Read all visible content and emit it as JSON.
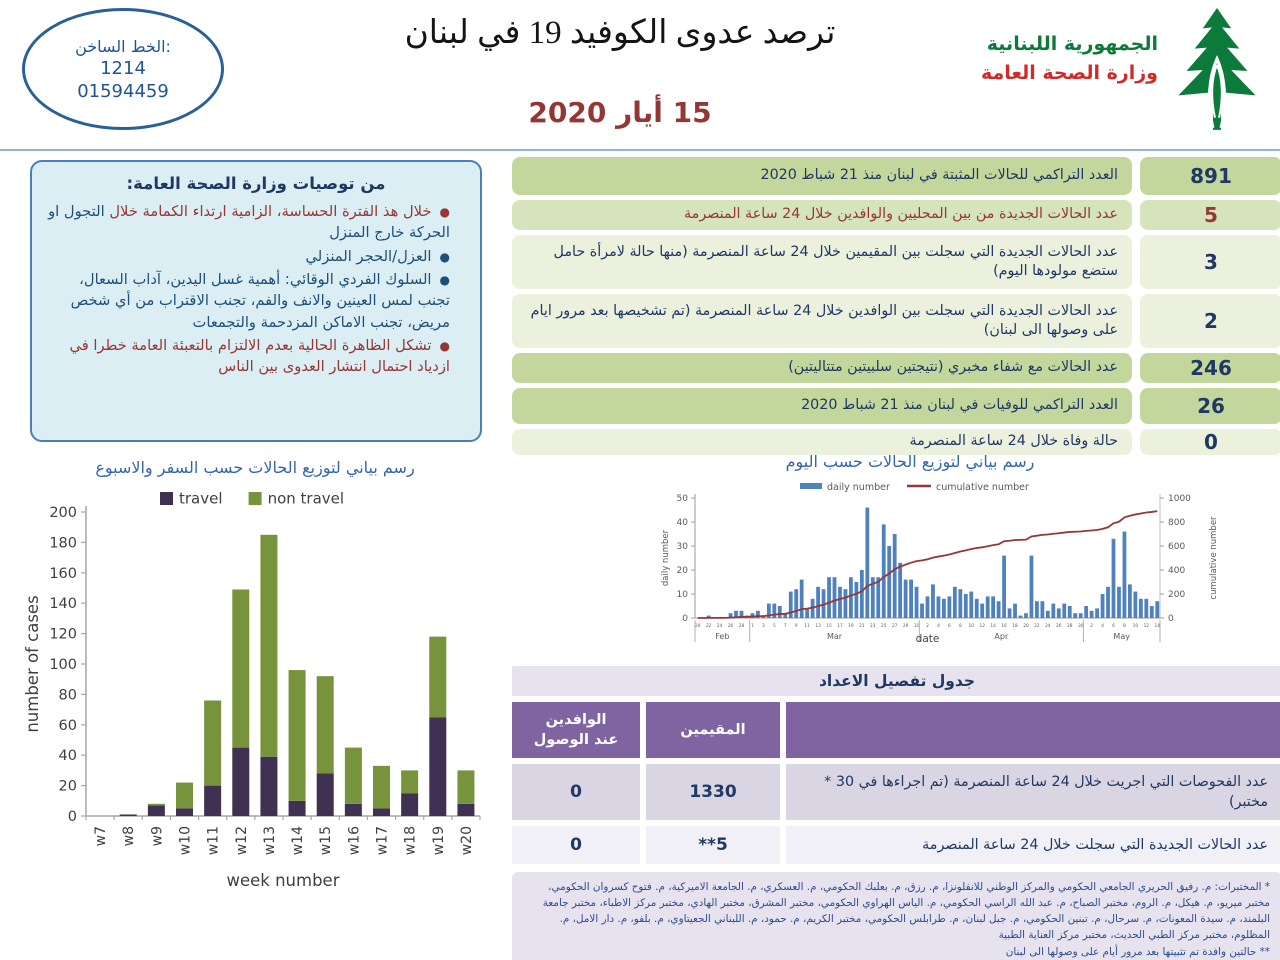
{
  "header": {
    "hotline": {
      "label": "الخط الساخن:",
      "number1": "1214",
      "number2": "01594459"
    },
    "title": "ترصد عدوى الكوفيد 19 في لبنان",
    "date": "15 أيار 2020",
    "ministry_line1": "الجمهورية اللبنانية",
    "ministry_line2": "وزارة الصحة العامة"
  },
  "recommendations": {
    "title": "من توصيات وزارة الصحة العامة:",
    "bullet1_red": "خلال هذ الفترة الحساسة، الزامية ارتداء الكمامة خلال",
    "bullet1_blue": "التجول او الحركة خارج المنزل",
    "bullet2": "العزل/الحجر المنزلي",
    "bullet3": "السلوك الفردي الوقائي: أهمية غسل اليدين، آداب السعال، تجنب لمس العينين والانف والفم، تجنب الاقتراب من أي شخص مريض، تجنب الاماكن المزدحمة والتجمعات",
    "bullet4": "تشكل الظاهرة الحالية بعدم الالتزام بالتعبئة العامة خطرا في ازدياد احتمال انتشار العدوى بين الناس"
  },
  "stats": {
    "rows": [
      {
        "value": "891",
        "label": "العدد التراكمي للحالات المثبتة في لبنان منذ 21 شباط 2020"
      },
      {
        "value": "5",
        "label": "عدد الحالات الجديدة من بين المحليين والوافدين خلال 24 ساعة المنصرمة"
      },
      {
        "value": "3",
        "label": "عدد الحالات الجديدة التي سجلت بين المقيمين خلال 24 ساعة المنصرمة (منها حالة لامرأة حامل ستضع مولودها اليوم)"
      },
      {
        "value": "2",
        "label": "عدد الحالات الجديدة التي سجلت بين الوافدين خلال 24 ساعة المنصرمة (تم تشخيصها بعد مرور ايام على وصولها الى لبنان)"
      },
      {
        "value": "246",
        "label": "عدد الحالات مع شفاء مخبري (نتيجتين سلبيتين متتاليتين)"
      },
      {
        "value": "26",
        "label": "العدد التراكمي للوفيات في لبنان منذ 21 شباط 2020"
      },
      {
        "value": "0",
        "label": "حالة وفاة خلال 24 ساعة المنصرمة"
      }
    ]
  },
  "chart_data": [
    {
      "type": "bar",
      "stacked": true,
      "title": "رسم بياني لتوزيع الحالات حسب السفر والاسبوع",
      "categories": [
        "w7",
        "w8",
        "w9",
        "w10",
        "w11",
        "w12",
        "w13",
        "w14",
        "w15",
        "w16",
        "w17",
        "w18",
        "w19",
        "w20"
      ],
      "series": [
        {
          "name": "travel",
          "color": "#403152",
          "values": [
            0,
            1,
            7,
            5,
            20,
            45,
            39,
            10,
            28,
            8,
            5,
            15,
            65,
            8
          ]
        },
        {
          "name": "non travel",
          "color": "#77933c",
          "values": [
            0,
            0,
            1,
            17,
            56,
            104,
            146,
            86,
            64,
            37,
            28,
            15,
            53,
            22
          ]
        }
      ],
      "xlabel": "week number",
      "ylabel": "number of cases",
      "ylim": [
        0,
        200
      ],
      "ytick_step": 20,
      "legend_position": "top",
      "grid": false
    },
    {
      "type": "bar+line",
      "title": "رسم بياني لتوزيع الحالات حسب اليوم",
      "xlabel": "date",
      "ylabel_left": "daily number",
      "ylabel_right": "cumulative number",
      "ylim_left": [
        0,
        50
      ],
      "ytick_left": 10,
      "ylim_right": [
        0,
        1000
      ],
      "ytick_right": 200,
      "months": [
        {
          "name": "Feb",
          "start_day": 20,
          "days": 10
        },
        {
          "name": "Mar",
          "start_day": 1,
          "days": 31
        },
        {
          "name": "Apr",
          "start_day": 1,
          "days": 30
        },
        {
          "name": "May",
          "start_day": 1,
          "days": 14
        }
      ],
      "series": [
        {
          "name": "daily number",
          "type": "bar",
          "color": "#4f81bd",
          "values": [
            0,
            0,
            1,
            0,
            0,
            0,
            2,
            3,
            3,
            1,
            2,
            3,
            1,
            6,
            6,
            5,
            2,
            11,
            12,
            16,
            4,
            8,
            13,
            12,
            17,
            17,
            13,
            12,
            17,
            15,
            20,
            46,
            17,
            17,
            39,
            30,
            35,
            23,
            16,
            16,
            13,
            6,
            9,
            14,
            9,
            8,
            9,
            13,
            12,
            10,
            11,
            8,
            6,
            9,
            9,
            7,
            26,
            4,
            6,
            1,
            2,
            26,
            7,
            7,
            3,
            6,
            4,
            6,
            5,
            2,
            2,
            5,
            3,
            4,
            10,
            13,
            33,
            13,
            36,
            14,
            11,
            8,
            8,
            5,
            7
          ]
        },
        {
          "name": "cumulative number",
          "type": "line",
          "color": "#953735",
          "derived": "cumulative_of_daily",
          "final_value": 891
        }
      ],
      "legend_position": "top",
      "grid": false
    }
  ],
  "details_table": {
    "title": "جدول تفصيل الاعداد",
    "col1_header_line1": "الوافدين",
    "col1_header_line2": "عند الوصول",
    "col2_header": "المقيمين",
    "rows": [
      {
        "label": "عدد الفحوصات التي اجريت خلال 24 ساعة المنصرمة (تم اجراءها في 30 * مختبر)",
        "resident": "1330",
        "arrival": "0"
      },
      {
        "label": "عدد الحالات الجديدة التي سجلت خلال 24 ساعة المنصرمة",
        "resident": "**5",
        "arrival": "0"
      }
    ]
  },
  "footnotes": {
    "line1": "* المختبرات: م. رفيق الحريري الجامعي الحكومي والمركز الوطني للانفلونزا، م. رزق، م. بعلبك الحكومي، م. العسكري، م. الجامعة الاميركية، م. فتوح كسروان الحكومي، مختبر ميريو، م. هيكل، م. الروم، مختبر الصباح، م. عبد الله الراسي الحكومي، م. الياس الهراوي الحكومي، مختبر المشرق، مختبر الهادي، مختبر مركز الاطباء، مختبر جامعة البلمند، م. سيدة المعونات، م. سرحال، م. تبنين الحكومي، م. جبل لبنان، م. طرابلس الحكومي، مختبر الكريم، م. حمود، م. اللبناني الجعيتاوي، م. بلفو، م. دار الامل، م. المظلوم، مختبر مركز الطبي الحديث، مختبر مركز العناية الطبية",
    "line2": "** حالتين وافدة تم تثبيتها بعد مرور أيام على وصولها الى لبنان"
  },
  "colors": {
    "stats_dark_green": "#c3d69b",
    "stats_medium_green": "#d6e4bc",
    "stats_light_green": "#ebf1dd",
    "stats_number_blue": "#1f3864",
    "alert_red": "#953735",
    "table_purple": "#8064a2",
    "table_lavender": "#e6e3ef",
    "daily_bar_blue": "#4f81bd",
    "cumulative_line_red": "#953735",
    "travel_purple": "#403152",
    "non_travel_green": "#77933c",
    "header_rule_blue": "#95b3d7"
  }
}
